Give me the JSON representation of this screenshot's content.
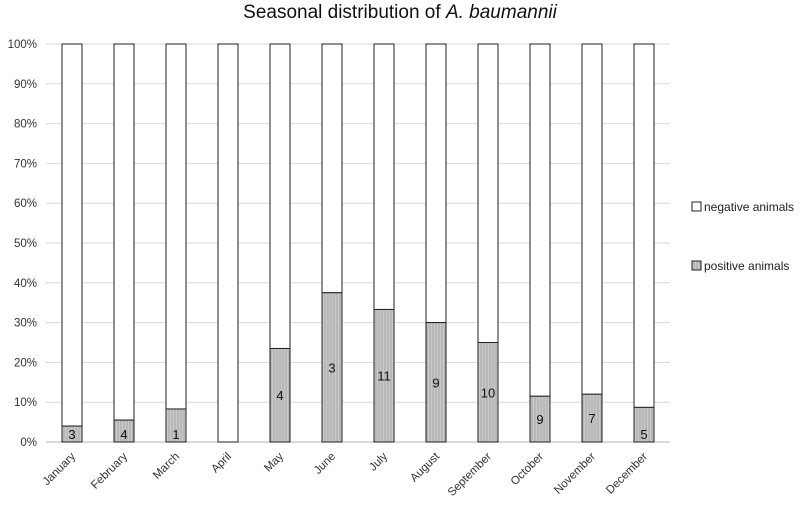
{
  "chart_data": {
    "type": "bar",
    "stacked": true,
    "percent_stacked": true,
    "title_prefix": "Seasonal distribution of ",
    "title_italic": "A. baumannii",
    "categories": [
      "January",
      "February",
      "March",
      "April",
      "May",
      "June",
      "July",
      "August",
      "September",
      "October",
      "November",
      "December"
    ],
    "series": [
      {
        "name": "positive animals",
        "values": [
          4,
          5.5,
          8.3,
          0,
          23.5,
          37.5,
          33.3,
          30,
          25,
          11.5,
          12,
          8.7
        ],
        "labels": [
          "3",
          "4",
          "1",
          "",
          "4",
          "3",
          "11",
          "9",
          "10",
          "9",
          "7",
          "5"
        ],
        "color": "#c8c8c8"
      },
      {
        "name": "negative animals",
        "values": [
          96,
          94.5,
          91.7,
          100,
          76.5,
          62.5,
          66.7,
          70,
          75,
          88.5,
          88,
          91.3
        ],
        "color": "#ffffff"
      }
    ],
    "yticks": [
      "0%",
      "10%",
      "20%",
      "30%",
      "40%",
      "50%",
      "60%",
      "70%",
      "80%",
      "90%",
      "100%"
    ],
    "ylim": [
      0,
      100
    ],
    "grid": true,
    "legend_placement": "right"
  }
}
